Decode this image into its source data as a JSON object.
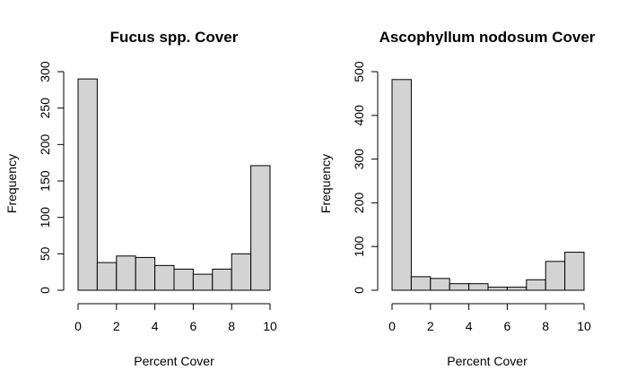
{
  "colors": {
    "bar_fill": "#d3d3d3",
    "bar_stroke": "#000000",
    "background": "#ffffff"
  },
  "chart_data": [
    {
      "type": "bar",
      "title": "Fucus spp. Cover",
      "xlabel": "Percent Cover",
      "ylabel": "Frequency",
      "bin_edges": [
        0,
        1,
        2,
        3,
        4,
        5,
        6,
        7,
        8,
        9,
        10
      ],
      "values": [
        290,
        38,
        47,
        45,
        34,
        29,
        22,
        29,
        50,
        171
      ],
      "xlim": [
        0,
        10
      ],
      "ylim": [
        0,
        300
      ],
      "x_ticks": [
        0,
        2,
        4,
        6,
        8,
        10
      ],
      "y_ticks": [
        0,
        50,
        100,
        150,
        200,
        250,
        300
      ],
      "grid": false
    },
    {
      "type": "bar",
      "title": "Ascophyllum nodosum Cover",
      "xlabel": "Percent Cover",
      "ylabel": "Frequency",
      "bin_edges": [
        0,
        1,
        2,
        3,
        4,
        5,
        6,
        7,
        8,
        9,
        10
      ],
      "values": [
        482,
        31,
        27,
        15,
        15,
        7,
        7,
        24,
        66,
        87
      ],
      "xlim": [
        0,
        10
      ],
      "ylim": [
        0,
        500
      ],
      "x_ticks": [
        0,
        2,
        4,
        6,
        8,
        10
      ],
      "y_ticks": [
        0,
        100,
        200,
        300,
        400,
        500
      ],
      "grid": false
    }
  ]
}
